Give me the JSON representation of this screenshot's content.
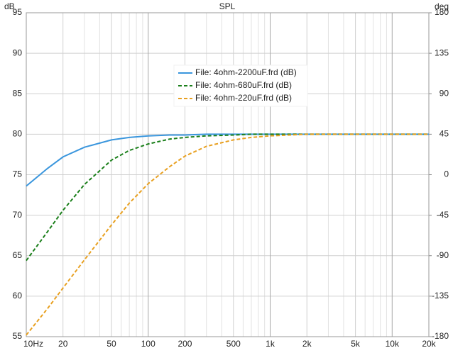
{
  "chart_data": {
    "type": "line",
    "title": "SPL",
    "y_label": "dB",
    "y2_label": "deg",
    "log_x": true,
    "grid": true,
    "legend_position": "top",
    "x": [
      10,
      15,
      20,
      30,
      50,
      70,
      100,
      150,
      200,
      300,
      500,
      700,
      1000,
      2000,
      5000,
      10000,
      20000
    ],
    "series": [
      {
        "name": "File: 4ohm-2200uF.frd (dB)",
        "color": "#3a96dd",
        "style": "solid",
        "values": [
          73.6,
          75.8,
          77.2,
          78.4,
          79.3,
          79.6,
          79.8,
          79.9,
          79.9,
          80,
          80,
          80,
          80,
          80,
          80,
          80,
          80
        ]
      },
      {
        "name": "File: 4ohm-680uF.frd (dB)",
        "color": "#1a7f1a",
        "style": "dashed",
        "values": [
          64.4,
          68,
          70.6,
          73.8,
          76.8,
          78,
          78.8,
          79.4,
          79.6,
          79.8,
          79.9,
          80,
          80,
          80,
          80,
          80,
          80
        ]
      },
      {
        "name": "File: 4ohm-220uF.frd (dB)",
        "color": "#e8a020",
        "style": "dashed",
        "values": [
          55.2,
          58.5,
          61,
          64.5,
          68.8,
          71.5,
          73.9,
          76,
          77.3,
          78.5,
          79.3,
          79.6,
          79.8,
          80,
          80,
          80,
          80
        ]
      }
    ],
    "xlim": [
      10,
      20000
    ],
    "xticks": [
      {
        "value": 10,
        "label": "10Hz"
      },
      20,
      50,
      100,
      200,
      500,
      {
        "value": 1000,
        "label": "1k"
      },
      {
        "value": 2000,
        "label": "2k"
      },
      {
        "value": 5000,
        "label": "5k"
      },
      {
        "value": 10000,
        "label": "10k"
      },
      {
        "value": 20000,
        "label": "20k"
      }
    ],
    "x_minor_ticks": [
      30,
      40,
      60,
      70,
      80,
      90,
      300,
      400,
      600,
      700,
      800,
      900,
      3000,
      4000,
      6000,
      7000,
      8000,
      9000
    ],
    "ylim": [
      55,
      95
    ],
    "yticks": [
      55,
      60,
      65,
      70,
      75,
      80,
      85,
      90,
      95
    ],
    "y2lim": [
      -180,
      180
    ],
    "y2ticks": [
      -180,
      -135,
      -90,
      -45,
      0,
      45,
      90,
      135,
      180
    ]
  }
}
